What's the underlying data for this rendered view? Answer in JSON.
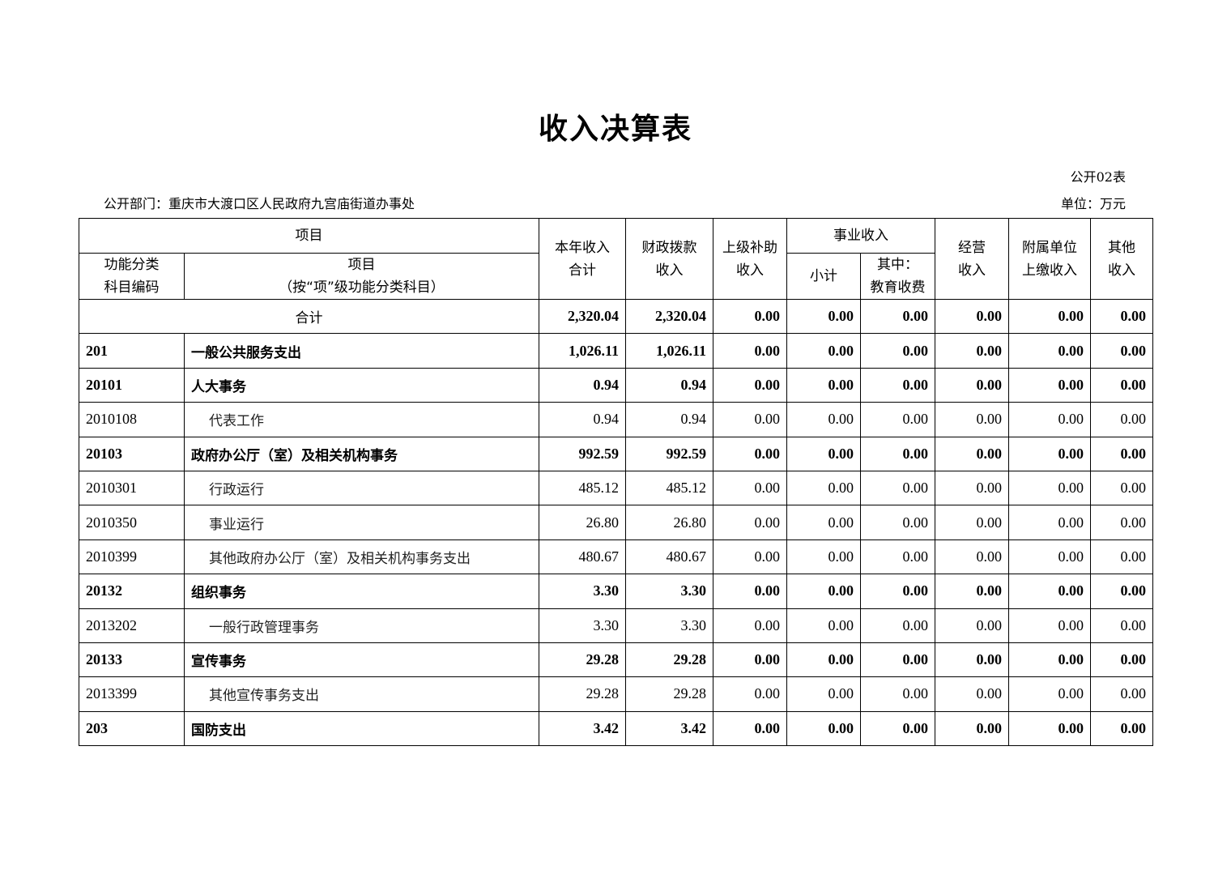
{
  "title": "收入决算表",
  "form_no": "公开02表",
  "department": "公开部门：重庆市大渡口区人民政府九宫庙街道办事处",
  "unit": "单位：万元",
  "headers": {
    "item_group": "项目",
    "code_line1": "功能分类",
    "code_line2": "科目编码",
    "item_line1": "项目",
    "item_line2": "（按“项”级功能分类科目）",
    "total_line1": "本年收入",
    "total_line2": "合计",
    "fiscal_line1": "财政拨款",
    "fiscal_line2": "收入",
    "superior_line1": "上级补助",
    "superior_line2": "收入",
    "business_group": "事业收入",
    "subtotal": "小计",
    "edu_line1": "其中：",
    "edu_line2": "教育收费",
    "operating_line1": "经营",
    "operating_line2": "收入",
    "affiliated_line1": "附属单位",
    "affiliated_line2": "上缴收入",
    "other_line1": "其他",
    "other_line2": "收入"
  },
  "rows": [
    {
      "code": "",
      "name": "合计",
      "bold": true,
      "total": true,
      "values": [
        "2,320.04",
        "2,320.04",
        "0.00",
        "0.00",
        "0.00",
        "0.00",
        "0.00",
        "0.00"
      ]
    },
    {
      "code": "201",
      "name": "一般公共服务支出",
      "bold": true,
      "values": [
        "1,026.11",
        "1,026.11",
        "0.00",
        "0.00",
        "0.00",
        "0.00",
        "0.00",
        "0.00"
      ]
    },
    {
      "code": "20101",
      "name": "人大事务",
      "bold": true,
      "values": [
        "0.94",
        "0.94",
        "0.00",
        "0.00",
        "0.00",
        "0.00",
        "0.00",
        "0.00"
      ]
    },
    {
      "code": "2010108",
      "name": "代表工作",
      "bold": false,
      "values": [
        "0.94",
        "0.94",
        "0.00",
        "0.00",
        "0.00",
        "0.00",
        "0.00",
        "0.00"
      ]
    },
    {
      "code": "20103",
      "name": "政府办公厅（室）及相关机构事务",
      "bold": true,
      "values": [
        "992.59",
        "992.59",
        "0.00",
        "0.00",
        "0.00",
        "0.00",
        "0.00",
        "0.00"
      ]
    },
    {
      "code": "2010301",
      "name": "行政运行",
      "bold": false,
      "values": [
        "485.12",
        "485.12",
        "0.00",
        "0.00",
        "0.00",
        "0.00",
        "0.00",
        "0.00"
      ]
    },
    {
      "code": "2010350",
      "name": "事业运行",
      "bold": false,
      "values": [
        "26.80",
        "26.80",
        "0.00",
        "0.00",
        "0.00",
        "0.00",
        "0.00",
        "0.00"
      ]
    },
    {
      "code": "2010399",
      "name": "其他政府办公厅（室）及相关机构事务支出",
      "bold": false,
      "values": [
        "480.67",
        "480.67",
        "0.00",
        "0.00",
        "0.00",
        "0.00",
        "0.00",
        "0.00"
      ]
    },
    {
      "code": "20132",
      "name": "组织事务",
      "bold": true,
      "values": [
        "3.30",
        "3.30",
        "0.00",
        "0.00",
        "0.00",
        "0.00",
        "0.00",
        "0.00"
      ]
    },
    {
      "code": "2013202",
      "name": "一般行政管理事务",
      "bold": false,
      "values": [
        "3.30",
        "3.30",
        "0.00",
        "0.00",
        "0.00",
        "0.00",
        "0.00",
        "0.00"
      ]
    },
    {
      "code": "20133",
      "name": "宣传事务",
      "bold": true,
      "values": [
        "29.28",
        "29.28",
        "0.00",
        "0.00",
        "0.00",
        "0.00",
        "0.00",
        "0.00"
      ]
    },
    {
      "code": "2013399",
      "name": "其他宣传事务支出",
      "bold": false,
      "values": [
        "29.28",
        "29.28",
        "0.00",
        "0.00",
        "0.00",
        "0.00",
        "0.00",
        "0.00"
      ]
    },
    {
      "code": "203",
      "name": "国防支出",
      "bold": true,
      "values": [
        "3.42",
        "3.42",
        "0.00",
        "0.00",
        "0.00",
        "0.00",
        "0.00",
        "0.00"
      ]
    }
  ]
}
